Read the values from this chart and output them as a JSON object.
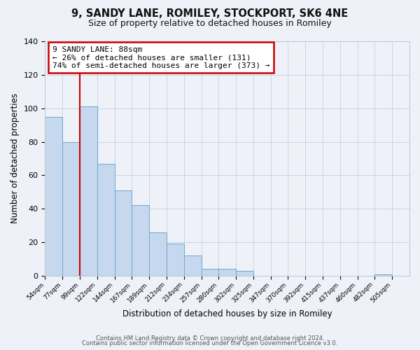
{
  "title": "9, SANDY LANE, ROMILEY, STOCKPORT, SK6 4NE",
  "subtitle": "Size of property relative to detached houses in Romiley",
  "xlabel": "Distribution of detached houses by size in Romiley",
  "ylabel": "Number of detached properties",
  "bins": [
    "54sqm",
    "77sqm",
    "99sqm",
    "122sqm",
    "144sqm",
    "167sqm",
    "189sqm",
    "212sqm",
    "234sqm",
    "257sqm",
    "280sqm",
    "302sqm",
    "325sqm",
    "347sqm",
    "370sqm",
    "392sqm",
    "415sqm",
    "437sqm",
    "460sqm",
    "482sqm",
    "505sqm"
  ],
  "values": [
    95,
    80,
    101,
    67,
    51,
    42,
    26,
    19,
    12,
    4,
    4,
    3,
    0,
    0,
    0,
    0,
    0,
    0,
    0,
    1,
    0
  ],
  "bar_color": "#c5d8ed",
  "bar_edge_color": "#6ea8d0",
  "marker_line_color": "#cc0000",
  "annotation_title": "9 SANDY LANE: 88sqm",
  "annotation_line1": "← 26% of detached houses are smaller (131)",
  "annotation_line2": "74% of semi-detached houses are larger (373) →",
  "annotation_box_color": "white",
  "annotation_box_edge_color": "#cc0000",
  "ylim": [
    0,
    140
  ],
  "yticks": [
    0,
    20,
    40,
    60,
    80,
    100,
    120,
    140
  ],
  "footer1": "Contains HM Land Registry data © Crown copyright and database right 2024.",
  "footer2": "Contains public sector information licensed under the Open Government Licence v3.0.",
  "bg_color": "#eef2f8"
}
